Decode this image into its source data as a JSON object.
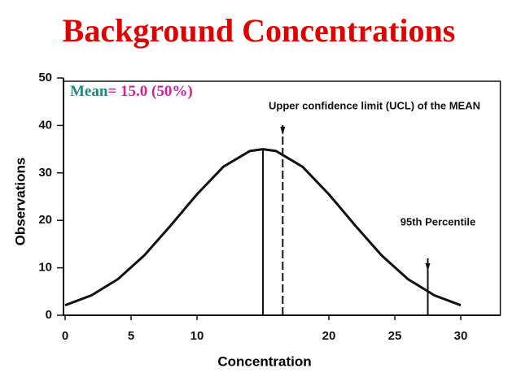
{
  "chart_data": {
    "type": "line",
    "title": "Background Concentrations",
    "annotation_mean": [
      "Mean",
      "= 15.0 (50%)"
    ],
    "ucl_label": "Upper confidence limit (UCL) of the MEAN",
    "p95_label": "95th Percentile",
    "x_label": "Concentration",
    "y_label": "Observations",
    "x": [
      0,
      2,
      4,
      6,
      8,
      10,
      12,
      14,
      15,
      16,
      18,
      20,
      22,
      24,
      26,
      28,
      30
    ],
    "series": [
      {
        "name": "Observations",
        "color": "#111111",
        "values": [
          2.1,
          4.2,
          7.6,
          12.6,
          18.9,
          25.5,
          31.3,
          34.6,
          35,
          34.6,
          31.3,
          25.5,
          18.9,
          12.6,
          7.6,
          4.2,
          2.1
        ]
      }
    ],
    "markers": [
      {
        "x": 15,
        "style": "solid"
      },
      {
        "x": 16.5,
        "style": "dashed"
      },
      {
        "x": 27.5,
        "style": "solid"
      }
    ],
    "xlim": [
      0,
      33
    ],
    "xticks": [
      0,
      5,
      10,
      20,
      25,
      30
    ],
    "ylim": [
      0,
      50
    ],
    "yticks": [
      0,
      10,
      20,
      30,
      40,
      50
    ],
    "title_color": "#e00000",
    "mean_colors": [
      "#1a8a7a",
      "#d0209a"
    ]
  }
}
